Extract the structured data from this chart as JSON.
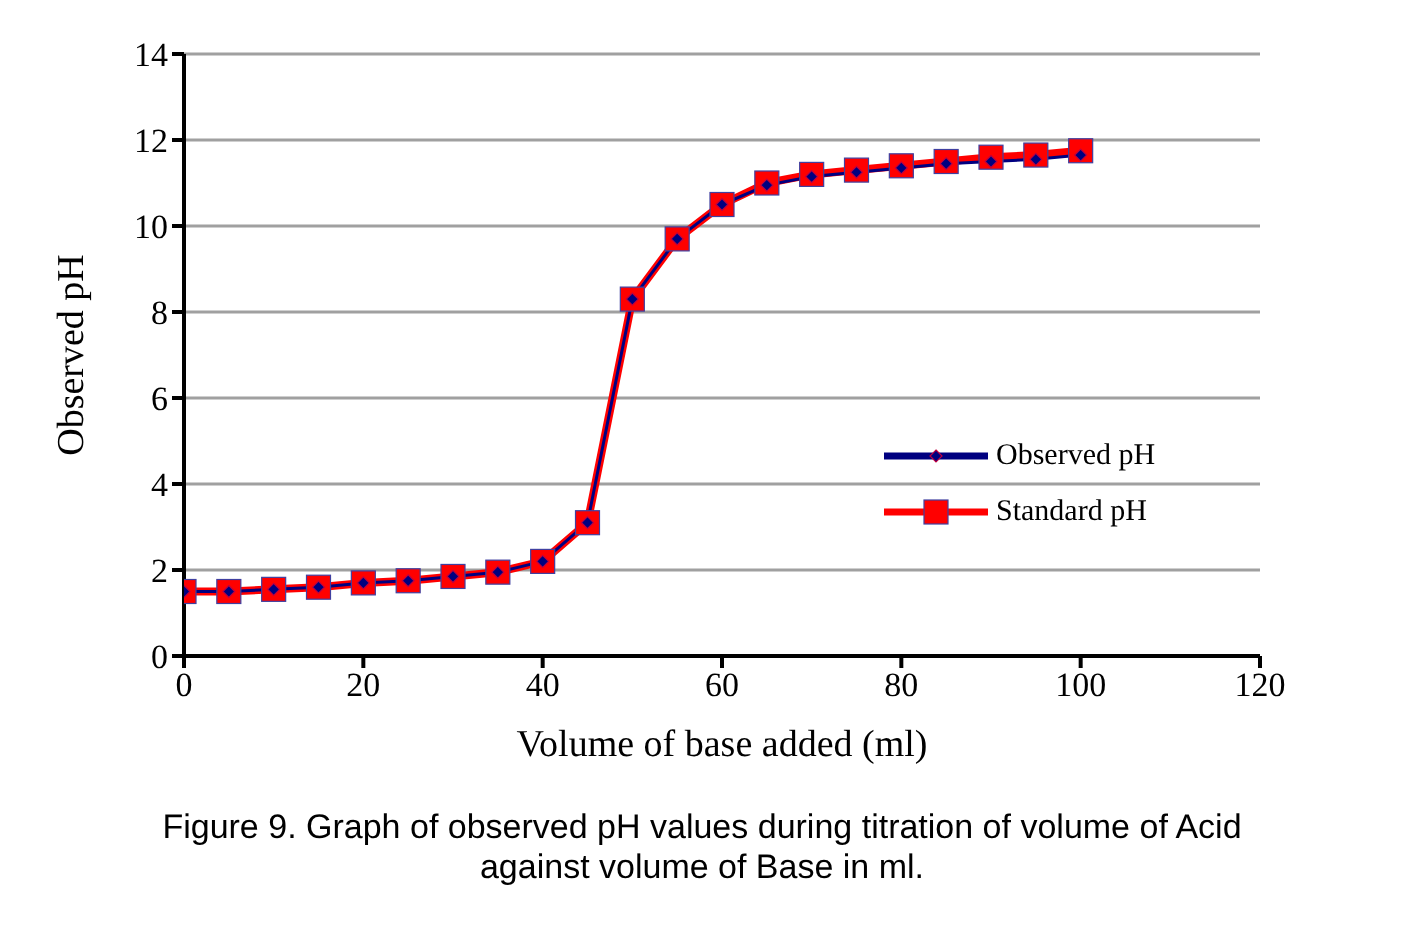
{
  "chart_data": {
    "type": "line",
    "xlabel": "Volume of base added (ml)",
    "ylabel": "Observed pH",
    "x": [
      0,
      5,
      10,
      15,
      20,
      25,
      30,
      35,
      40,
      45,
      50,
      55,
      60,
      65,
      70,
      75,
      80,
      85,
      90,
      95,
      100
    ],
    "series": [
      {
        "name": "Observed pH",
        "color": "#000080",
        "marker": "diamond",
        "values": [
          1.5,
          1.5,
          1.55,
          1.6,
          1.7,
          1.75,
          1.85,
          1.95,
          2.2,
          3.1,
          8.3,
          9.7,
          10.5,
          10.95,
          11.15,
          11.25,
          11.35,
          11.45,
          11.5,
          11.55,
          11.65
        ]
      },
      {
        "name": "Standard pH",
        "color": "#ff0000",
        "marker": "square",
        "values": [
          1.5,
          1.5,
          1.55,
          1.6,
          1.7,
          1.75,
          1.85,
          1.95,
          2.2,
          3.1,
          8.3,
          9.7,
          10.5,
          11.0,
          11.2,
          11.3,
          11.4,
          11.5,
          11.6,
          11.65,
          11.75
        ]
      }
    ],
    "xlim": [
      0,
      120
    ],
    "xticks": [
      0,
      20,
      40,
      60,
      80,
      100,
      120
    ],
    "ylim": [
      0,
      14
    ],
    "yticks": [
      0,
      2,
      4,
      6,
      8,
      10,
      12,
      14
    ],
    "grid": "y",
    "legend": "right",
    "line_style": "solid",
    "annotations": [
      "Figure 9. Graph of observed pH values during titration of volume of Acid against volume of Base in ml."
    ]
  }
}
